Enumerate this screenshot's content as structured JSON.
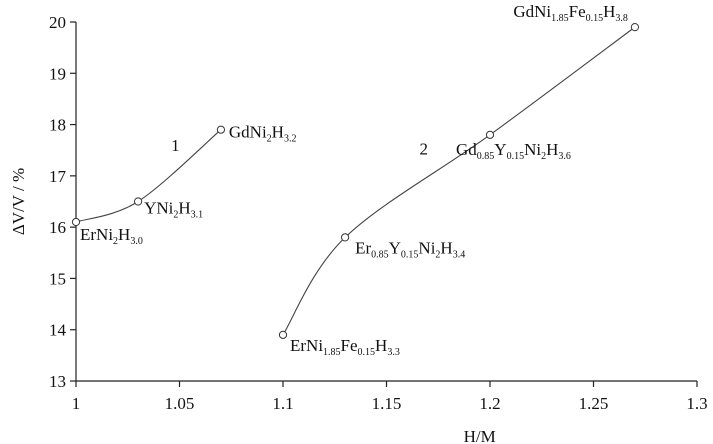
{
  "chart_data": {
    "type": "line",
    "xlabel": "H/M",
    "ylabel": "ΔV/V / %",
    "xlim": [
      1,
      1.3
    ],
    "ylim": [
      13,
      20
    ],
    "xticks": [
      "1",
      "1.05",
      "1.1",
      "1.15",
      "1.2",
      "1.25",
      "1.3"
    ],
    "yticks": [
      "13",
      "14",
      "15",
      "16",
      "17",
      "18",
      "19",
      "20"
    ],
    "series": [
      {
        "name": "1",
        "points": [
          {
            "x": 1.0,
            "y": 16.1,
            "label": [
              {
                "t": "ErNi"
              },
              {
                "t": "2",
                "s": 1
              },
              {
                "t": "H"
              },
              {
                "t": "3.0",
                "s": 1
              }
            ]
          },
          {
            "x": 1.03,
            "y": 16.5,
            "label": [
              {
                "t": "YNi"
              },
              {
                "t": "2",
                "s": 1
              },
              {
                "t": "H"
              },
              {
                "t": "3.1",
                "s": 1
              }
            ]
          },
          {
            "x": 1.07,
            "y": 17.9,
            "label": [
              {
                "t": "GdNi"
              },
              {
                "t": "2",
                "s": 1
              },
              {
                "t": "H"
              },
              {
                "t": "3.2",
                "s": 1
              }
            ]
          }
        ]
      },
      {
        "name": "2",
        "points": [
          {
            "x": 1.1,
            "y": 13.9,
            "label": [
              {
                "t": "ErNi"
              },
              {
                "t": "1.85",
                "s": 1
              },
              {
                "t": "Fe"
              },
              {
                "t": "0.15",
                "s": 1
              },
              {
                "t": "H"
              },
              {
                "t": "3.3",
                "s": 1
              }
            ]
          },
          {
            "x": 1.13,
            "y": 15.8,
            "label": [
              {
                "t": "Er"
              },
              {
                "t": "0.85",
                "s": 1
              },
              {
                "t": "Y"
              },
              {
                "t": "0.15",
                "s": 1
              },
              {
                "t": "Ni"
              },
              {
                "t": "2",
                "s": 1
              },
              {
                "t": "H"
              },
              {
                "t": "3.4",
                "s": 1
              }
            ]
          },
          {
            "x": 1.2,
            "y": 17.8,
            "label": [
              {
                "t": "Gd"
              },
              {
                "t": "0.85",
                "s": 1
              },
              {
                "t": "Y"
              },
              {
                "t": "0.15",
                "s": 1
              },
              {
                "t": "Ni"
              },
              {
                "t": "2",
                "s": 1
              },
              {
                "t": "H"
              },
              {
                "t": "3.6",
                "s": 1
              }
            ]
          },
          {
            "x": 1.27,
            "y": 19.9,
            "label": [
              {
                "t": "GdNi"
              },
              {
                "t": "1.85",
                "s": 1
              },
              {
                "t": "Fe"
              },
              {
                "t": "0.15",
                "s": 1
              },
              {
                "t": "H"
              },
              {
                "t": "3.8",
                "s": 1
              }
            ]
          }
        ]
      }
    ]
  }
}
